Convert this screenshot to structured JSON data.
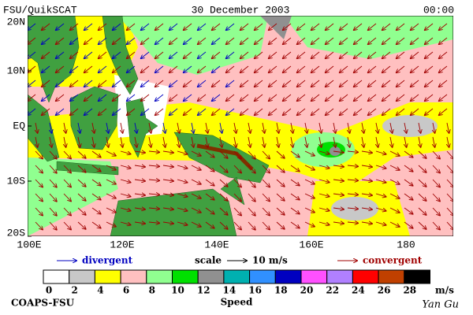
{
  "header": {
    "left": "FSU/QuikSCAT",
    "date": "30 December 2003",
    "time": "00:00"
  },
  "map": {
    "lat_labels": [
      "20N",
      "10N",
      "EQ",
      "10S",
      "20S"
    ],
    "lon_labels": [
      "100E",
      "120E",
      "140E",
      "160E",
      "180"
    ]
  },
  "legend": {
    "divergent": "divergent",
    "scale": "scale",
    "scale_value": "10 m/s",
    "convergent": "convergent"
  },
  "colorbar": {
    "labels": [
      0,
      2,
      4,
      6,
      8,
      10,
      12,
      14,
      16,
      18,
      20,
      22,
      24,
      26,
      28
    ],
    "unit": "m/s",
    "title": "Speed",
    "colors": [
      "#ffffff",
      "#c8c8c8",
      "#ffff00",
      "#ffc0c0",
      "#90ff90",
      "#00e000",
      "#909090",
      "#00b0b0",
      "#3090ff",
      "#0000c0",
      "#ff50ff",
      "#b080ff",
      "#ff0000",
      "#c04000",
      "#000000"
    ]
  },
  "footer": {
    "left": "COAPS-FSU",
    "right": "Yan Gu"
  }
}
